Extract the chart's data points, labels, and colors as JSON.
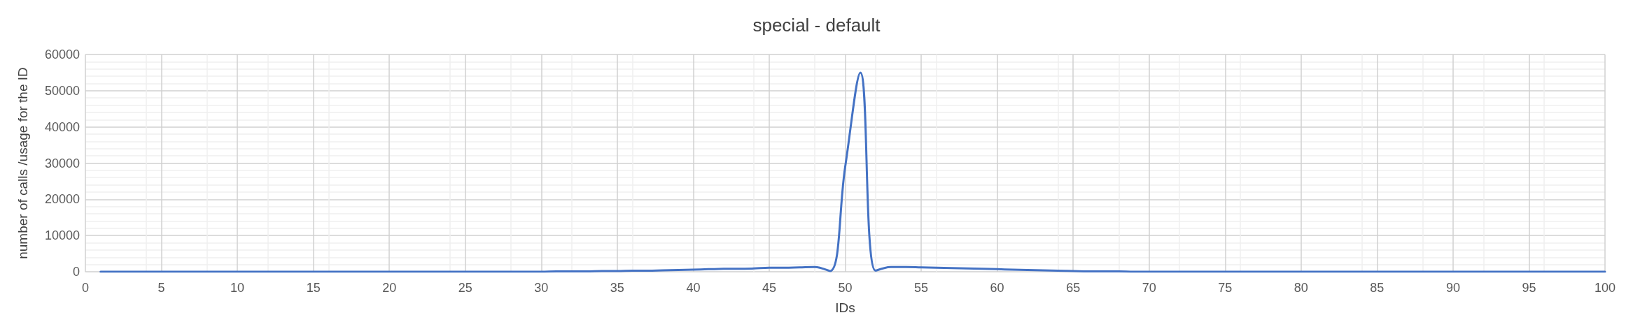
{
  "chart_data": {
    "type": "line",
    "title": "special - default",
    "xlabel": "IDs",
    "ylabel": "number of calls /usage for the ID",
    "x": [
      1,
      2,
      3,
      4,
      5,
      6,
      7,
      8,
      9,
      10,
      11,
      12,
      13,
      14,
      15,
      16,
      17,
      18,
      19,
      20,
      21,
      22,
      23,
      24,
      25,
      26,
      27,
      28,
      29,
      30,
      31,
      32,
      33,
      34,
      35,
      36,
      37,
      38,
      39,
      40,
      41,
      42,
      43,
      44,
      45,
      46,
      47,
      48,
      49,
      50,
      51,
      52,
      53,
      54,
      55,
      56,
      57,
      58,
      59,
      60,
      61,
      62,
      63,
      64,
      65,
      66,
      67,
      68,
      69,
      70,
      71,
      72,
      73,
      74,
      75,
      76,
      77,
      78,
      79,
      80,
      81,
      82,
      83,
      84,
      85,
      86,
      87,
      88,
      89,
      90,
      91,
      92,
      93,
      94,
      95,
      96,
      97,
      98,
      99,
      100
    ],
    "series": [
      {
        "color": "#4472c4",
        "values": [
          0,
          0,
          0,
          0,
          0,
          0,
          0,
          0,
          0,
          0,
          0,
          0,
          0,
          0,
          0,
          0,
          0,
          0,
          0,
          0,
          0,
          0,
          0,
          0,
          0,
          0,
          0,
          0,
          0,
          0,
          100,
          100,
          100,
          200,
          200,
          300,
          300,
          400,
          500,
          600,
          700,
          800,
          800,
          900,
          1100,
          1100,
          1200,
          1300,
          200,
          29000,
          55000,
          300,
          1300,
          1300,
          1200,
          1100,
          1000,
          900,
          800,
          700,
          600,
          500,
          400,
          300,
          200,
          100,
          100,
          100,
          0,
          0,
          0,
          0,
          0,
          0,
          0,
          0,
          0,
          0,
          0,
          0,
          0,
          0,
          0,
          0,
          0,
          0,
          0,
          0,
          0,
          0,
          0,
          0,
          0,
          0,
          0,
          0,
          0,
          0,
          0,
          0
        ]
      }
    ],
    "xlim": [
      0,
      100
    ],
    "xticks": [
      0,
      5,
      10,
      15,
      20,
      25,
      30,
      35,
      40,
      45,
      50,
      55,
      60,
      65,
      70,
      75,
      80,
      85,
      90,
      95,
      100
    ],
    "ylim": [
      0,
      60000
    ],
    "yticks": [
      0,
      10000,
      20000,
      30000,
      40000,
      50000,
      60000
    ],
    "grid": true,
    "marker": "none",
    "line_style": "solid"
  }
}
